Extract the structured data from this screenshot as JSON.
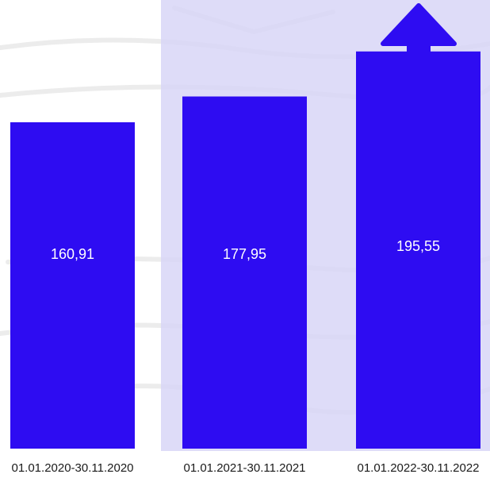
{
  "chart_data": {
    "type": "bar",
    "categories": [
      "01.01.2020-30.11.2020",
      "01.01.2021-30.11.2021",
      "01.01.2022-30.11.2022"
    ],
    "values": [
      160.91,
      177.95,
      195.55
    ],
    "value_labels": [
      "160,91",
      "177,95",
      "195,55"
    ],
    "title": "",
    "xlabel": "",
    "ylabel": "",
    "ylim": [
      0,
      200
    ],
    "highlight_category_index": 1,
    "trend_arrow": "up",
    "grid": false,
    "legend": "none"
  },
  "colors": {
    "bar": "#2e0cf2",
    "highlight_band": "#d8d6f7",
    "arrow": "#2e0cf2",
    "background_sketch": "#c8c8c8",
    "value_text": "#ffffff",
    "tick_text": "#1a1a1a"
  }
}
